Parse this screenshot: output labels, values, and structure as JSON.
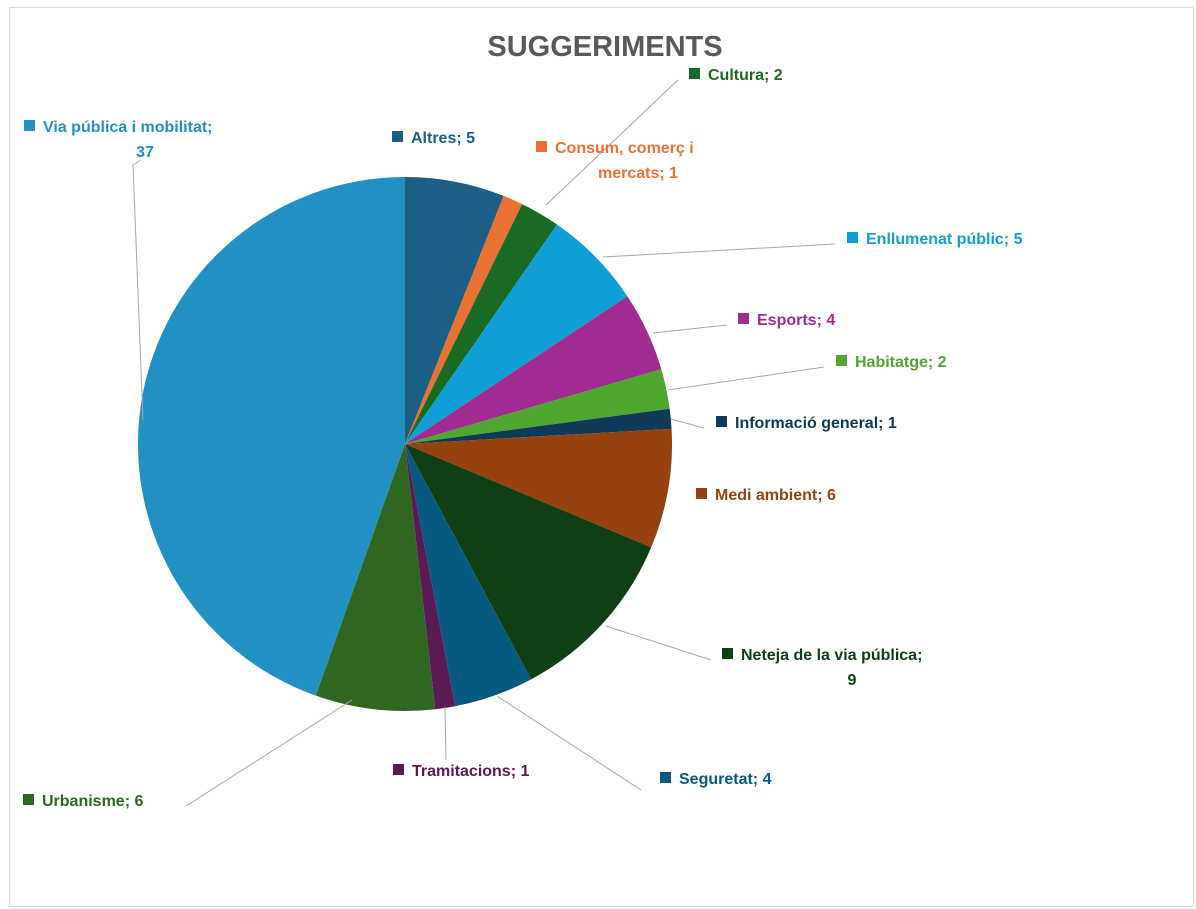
{
  "chart_data": {
    "type": "pie",
    "title": "SUGGERIMENTS",
    "separator": "; ",
    "slices": [
      {
        "name": "Altres",
        "value": 5,
        "color": "#1b5e86"
      },
      {
        "name": "Consum, comerç i mercats",
        "value": 1,
        "color": "#e97132"
      },
      {
        "name": "Cultura",
        "value": 2,
        "color": "#196b24"
      },
      {
        "name": "Enllumenat públic",
        "value": 5,
        "color": "#0f9ed5"
      },
      {
        "name": "Esports",
        "value": 4,
        "color": "#a02b93"
      },
      {
        "name": "Habitatge",
        "value": 2,
        "color": "#4ea72e"
      },
      {
        "name": "Informació general",
        "value": 1,
        "color": "#0e3a58"
      },
      {
        "name": "Medi ambient",
        "value": 6,
        "color": "#96420f"
      },
      {
        "name": "Neteja de la via pública",
        "value": 9,
        "color": "#0f4015"
      },
      {
        "name": "Seguretat",
        "value": 4,
        "color": "#065a82"
      },
      {
        "name": "Tramitacions",
        "value": 1,
        "color": "#5c1a55"
      },
      {
        "name": "Urbanisme",
        "value": 6,
        "color": "#2f6620"
      },
      {
        "name": "Via pública i mobilitat",
        "value": 37,
        "color": "#2191c4"
      }
    ]
  }
}
